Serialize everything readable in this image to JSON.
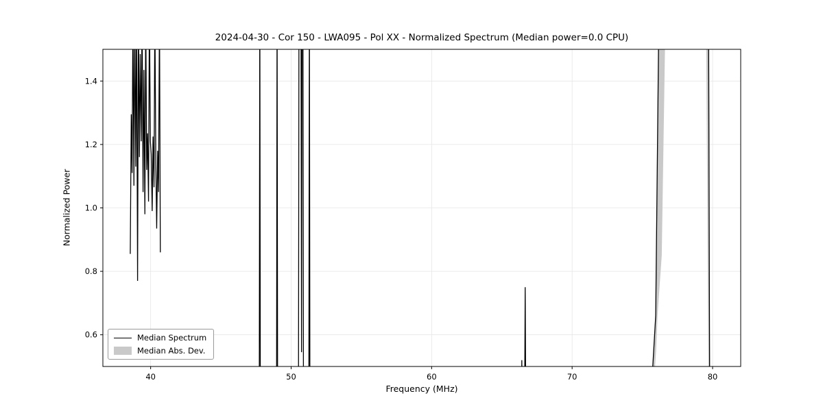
{
  "chart_data": {
    "type": "line",
    "title": "2024-04-30 - Cor 150 - LWA095 - Pol XX - Normalized Spectrum (Median power=0.0 CPU)",
    "xlabel": "Frequency (MHz)",
    "ylabel": "Normalized Power",
    "xlim": [
      36.6,
      82.0
    ],
    "ylim": [
      0.5,
      1.5
    ],
    "xticks": [
      40,
      50,
      60,
      70,
      80
    ],
    "xtick_labels": [
      "40",
      "50",
      "60",
      "70",
      "80"
    ],
    "yticks": [
      0.6,
      0.8,
      1.0,
      1.2,
      1.4
    ],
    "ytick_labels": [
      "0.6",
      "0.8",
      "1.0",
      "1.2",
      "1.4"
    ],
    "grid": true,
    "grid_color": "#e6e6e6",
    "axis_color": "#000000",
    "legend": {
      "position": "lower-left",
      "entries": [
        {
          "label": "Median Spectrum",
          "type": "line",
          "color": "#000000"
        },
        {
          "label": "Median Abs. Dev.",
          "type": "fill",
          "color": "#c9c9c9"
        }
      ]
    },
    "series": [
      {
        "name": "Median Abs. Dev.",
        "type": "fill",
        "color": "#c9c9c9",
        "polygons": [
          [
            [
              75.46,
              0.3
            ],
            [
              75.93,
              0.66
            ],
            [
              76.2,
              1.7
            ],
            [
              76.68,
              1.7
            ],
            [
              76.38,
              0.85
            ],
            [
              76.08,
              0.66
            ],
            [
              75.98,
              0.55
            ],
            [
              75.6,
              0.3
            ]
          ],
          [
            [
              79.52,
              1.7
            ],
            [
              79.74,
              1.7
            ],
            [
              79.82,
              0.3
            ],
            [
              79.73,
              0.3
            ]
          ]
        ]
      },
      {
        "name": "Median Spectrum",
        "type": "line",
        "color": "#000000",
        "line_width": 1.3,
        "segments": [
          [
            [
              38.55,
              0.855
            ],
            [
              38.62,
              1.295
            ],
            [
              38.68,
              1.11
            ],
            [
              38.74,
              1.62
            ],
            [
              38.81,
              1.07
            ],
            [
              38.87,
              1.62
            ],
            [
              38.94,
              1.13
            ],
            [
              39.0,
              1.62
            ],
            [
              39.07,
              0.77
            ],
            [
              39.13,
              1.62
            ],
            [
              39.2,
              1.16
            ],
            [
              39.26,
              1.485
            ],
            [
              39.33,
              1.21
            ],
            [
              39.39,
              1.62
            ],
            [
              39.46,
              1.05
            ],
            [
              39.52,
              1.435
            ],
            [
              39.59,
              0.98
            ],
            [
              39.65,
              1.62
            ],
            [
              39.72,
              1.12
            ],
            [
              39.78,
              1.235
            ],
            [
              39.85,
              1.02
            ],
            [
              39.91,
              1.62
            ],
            [
              39.98,
              1.21
            ],
            [
              40.04,
              1.17
            ],
            [
              40.11,
              0.99
            ],
            [
              40.17,
              1.225
            ],
            [
              40.24,
              1.065
            ],
            [
              40.3,
              1.62
            ],
            [
              40.37,
              1.14
            ],
            [
              40.43,
              0.935
            ],
            [
              40.5,
              1.18
            ],
            [
              40.56,
              1.05
            ],
            [
              40.63,
              1.62
            ],
            [
              40.69,
              0.86
            ]
          ],
          [
            [
              47.73,
              0.3
            ],
            [
              47.77,
              1.7
            ],
            [
              47.81,
              0.3
            ]
          ],
          [
            [
              48.96,
              0.3
            ],
            [
              49.0,
              1.7
            ],
            [
              49.04,
              0.3
            ]
          ],
          [
            [
              50.52,
              0.3
            ],
            [
              50.56,
              1.7
            ],
            [
              50.7,
              1.7
            ],
            [
              50.74,
              0.545
            ],
            [
              50.78,
              1.7
            ],
            [
              50.84,
              1.7
            ],
            [
              50.88,
              0.3
            ]
          ],
          [
            [
              51.26,
              0.3
            ],
            [
              51.3,
              1.7
            ],
            [
              51.34,
              0.3
            ]
          ],
          [
            [
              66.38,
              0.3
            ],
            [
              66.42,
              0.52
            ],
            [
              66.46,
              0.3
            ]
          ],
          [
            [
              66.61,
              0.3
            ],
            [
              66.66,
              0.75
            ],
            [
              66.71,
              0.3
            ]
          ],
          [
            [
              75.48,
              0.3
            ],
            [
              75.95,
              0.66
            ],
            [
              76.22,
              1.8
            ],
            [
              79.7,
              1.8
            ],
            [
              79.8,
              0.3
            ]
          ]
        ]
      }
    ]
  }
}
